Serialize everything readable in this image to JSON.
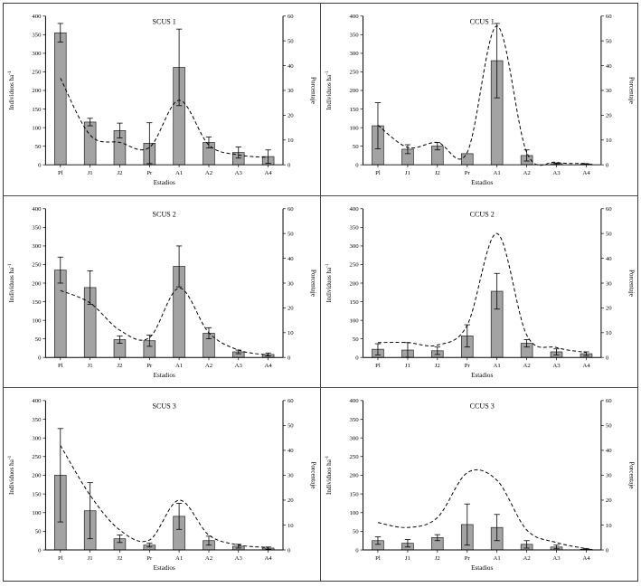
{
  "figure": {
    "description": "Six-panel figure: population structure (bars, left axis) with percentage curve (dashed line, right axis)"
  },
  "chart_data": {
    "type": "bar",
    "overlay": "dashed line on secondary (right) axis",
    "layout": "2 columns x 3 rows, shared axis style, no grid, no legend",
    "shared": {
      "categories": [
        "Pl",
        "J1",
        "J2",
        "Pr",
        "A1",
        "A2",
        "A3",
        "A4"
      ],
      "xlabel": "Estadios",
      "ylabel_left": "Individuos ha⁻¹",
      "ylabel_right": "Porcentaje",
      "ylim_left": [
        0,
        400
      ],
      "ylim_right": [
        0,
        60
      ],
      "ytick_step_left": 50,
      "ytick_step_right": 10,
      "bar_color": "#a3a3a3",
      "bar_edge_color": "#222222",
      "line_color": "#000000",
      "line_style": "dashed",
      "error_bars": true
    },
    "panels": [
      {
        "title": "SCUS 1",
        "bars": [
          355,
          115,
          92,
          58,
          262,
          60,
          33,
          22
        ],
        "errors": [
          25,
          10,
          20,
          55,
          103,
          15,
          15,
          18
        ],
        "line_percent": [
          35,
          12,
          9,
          7,
          26,
          8,
          4,
          3
        ]
      },
      {
        "title": "CCUS 1",
        "bars": [
          105,
          42,
          50,
          30,
          280,
          25,
          3,
          2
        ],
        "errors": [
          62,
          12,
          10,
          0,
          100,
          15,
          2,
          1
        ],
        "line_percent": [
          16,
          7,
          9,
          5,
          56,
          5,
          1,
          0.5
        ]
      },
      {
        "title": "SCUS 2",
        "bars": [
          235,
          188,
          48,
          45,
          245,
          65,
          15,
          8
        ],
        "errors": [
          35,
          45,
          10,
          15,
          55,
          15,
          5,
          4
        ],
        "line_percent": [
          27,
          22,
          11,
          8,
          28,
          10,
          3,
          1
        ]
      },
      {
        "title": "CCUS 2",
        "bars": [
          22,
          20,
          18,
          58,
          178,
          38,
          15,
          10
        ],
        "errors": [
          15,
          20,
          10,
          30,
          48,
          10,
          8,
          5
        ],
        "line_percent": [
          6,
          6,
          5,
          13,
          50,
          9,
          4,
          2
        ]
      },
      {
        "title": "SCUS 3",
        "bars": [
          200,
          105,
          30,
          13,
          90,
          25,
          10,
          5
        ],
        "errors": [
          125,
          75,
          10,
          5,
          35,
          12,
          5,
          3
        ],
        "line_percent": [
          42,
          22,
          8,
          4,
          20,
          6,
          2,
          1
        ]
      },
      {
        "title": "CCUS 3",
        "bars": [
          25,
          18,
          33,
          68,
          60,
          15,
          8,
          2
        ],
        "errors": [
          10,
          10,
          8,
          55,
          35,
          10,
          5,
          2
        ],
        "line_percent": [
          11,
          9,
          13,
          31,
          28,
          8,
          3,
          0.5
        ]
      }
    ]
  }
}
